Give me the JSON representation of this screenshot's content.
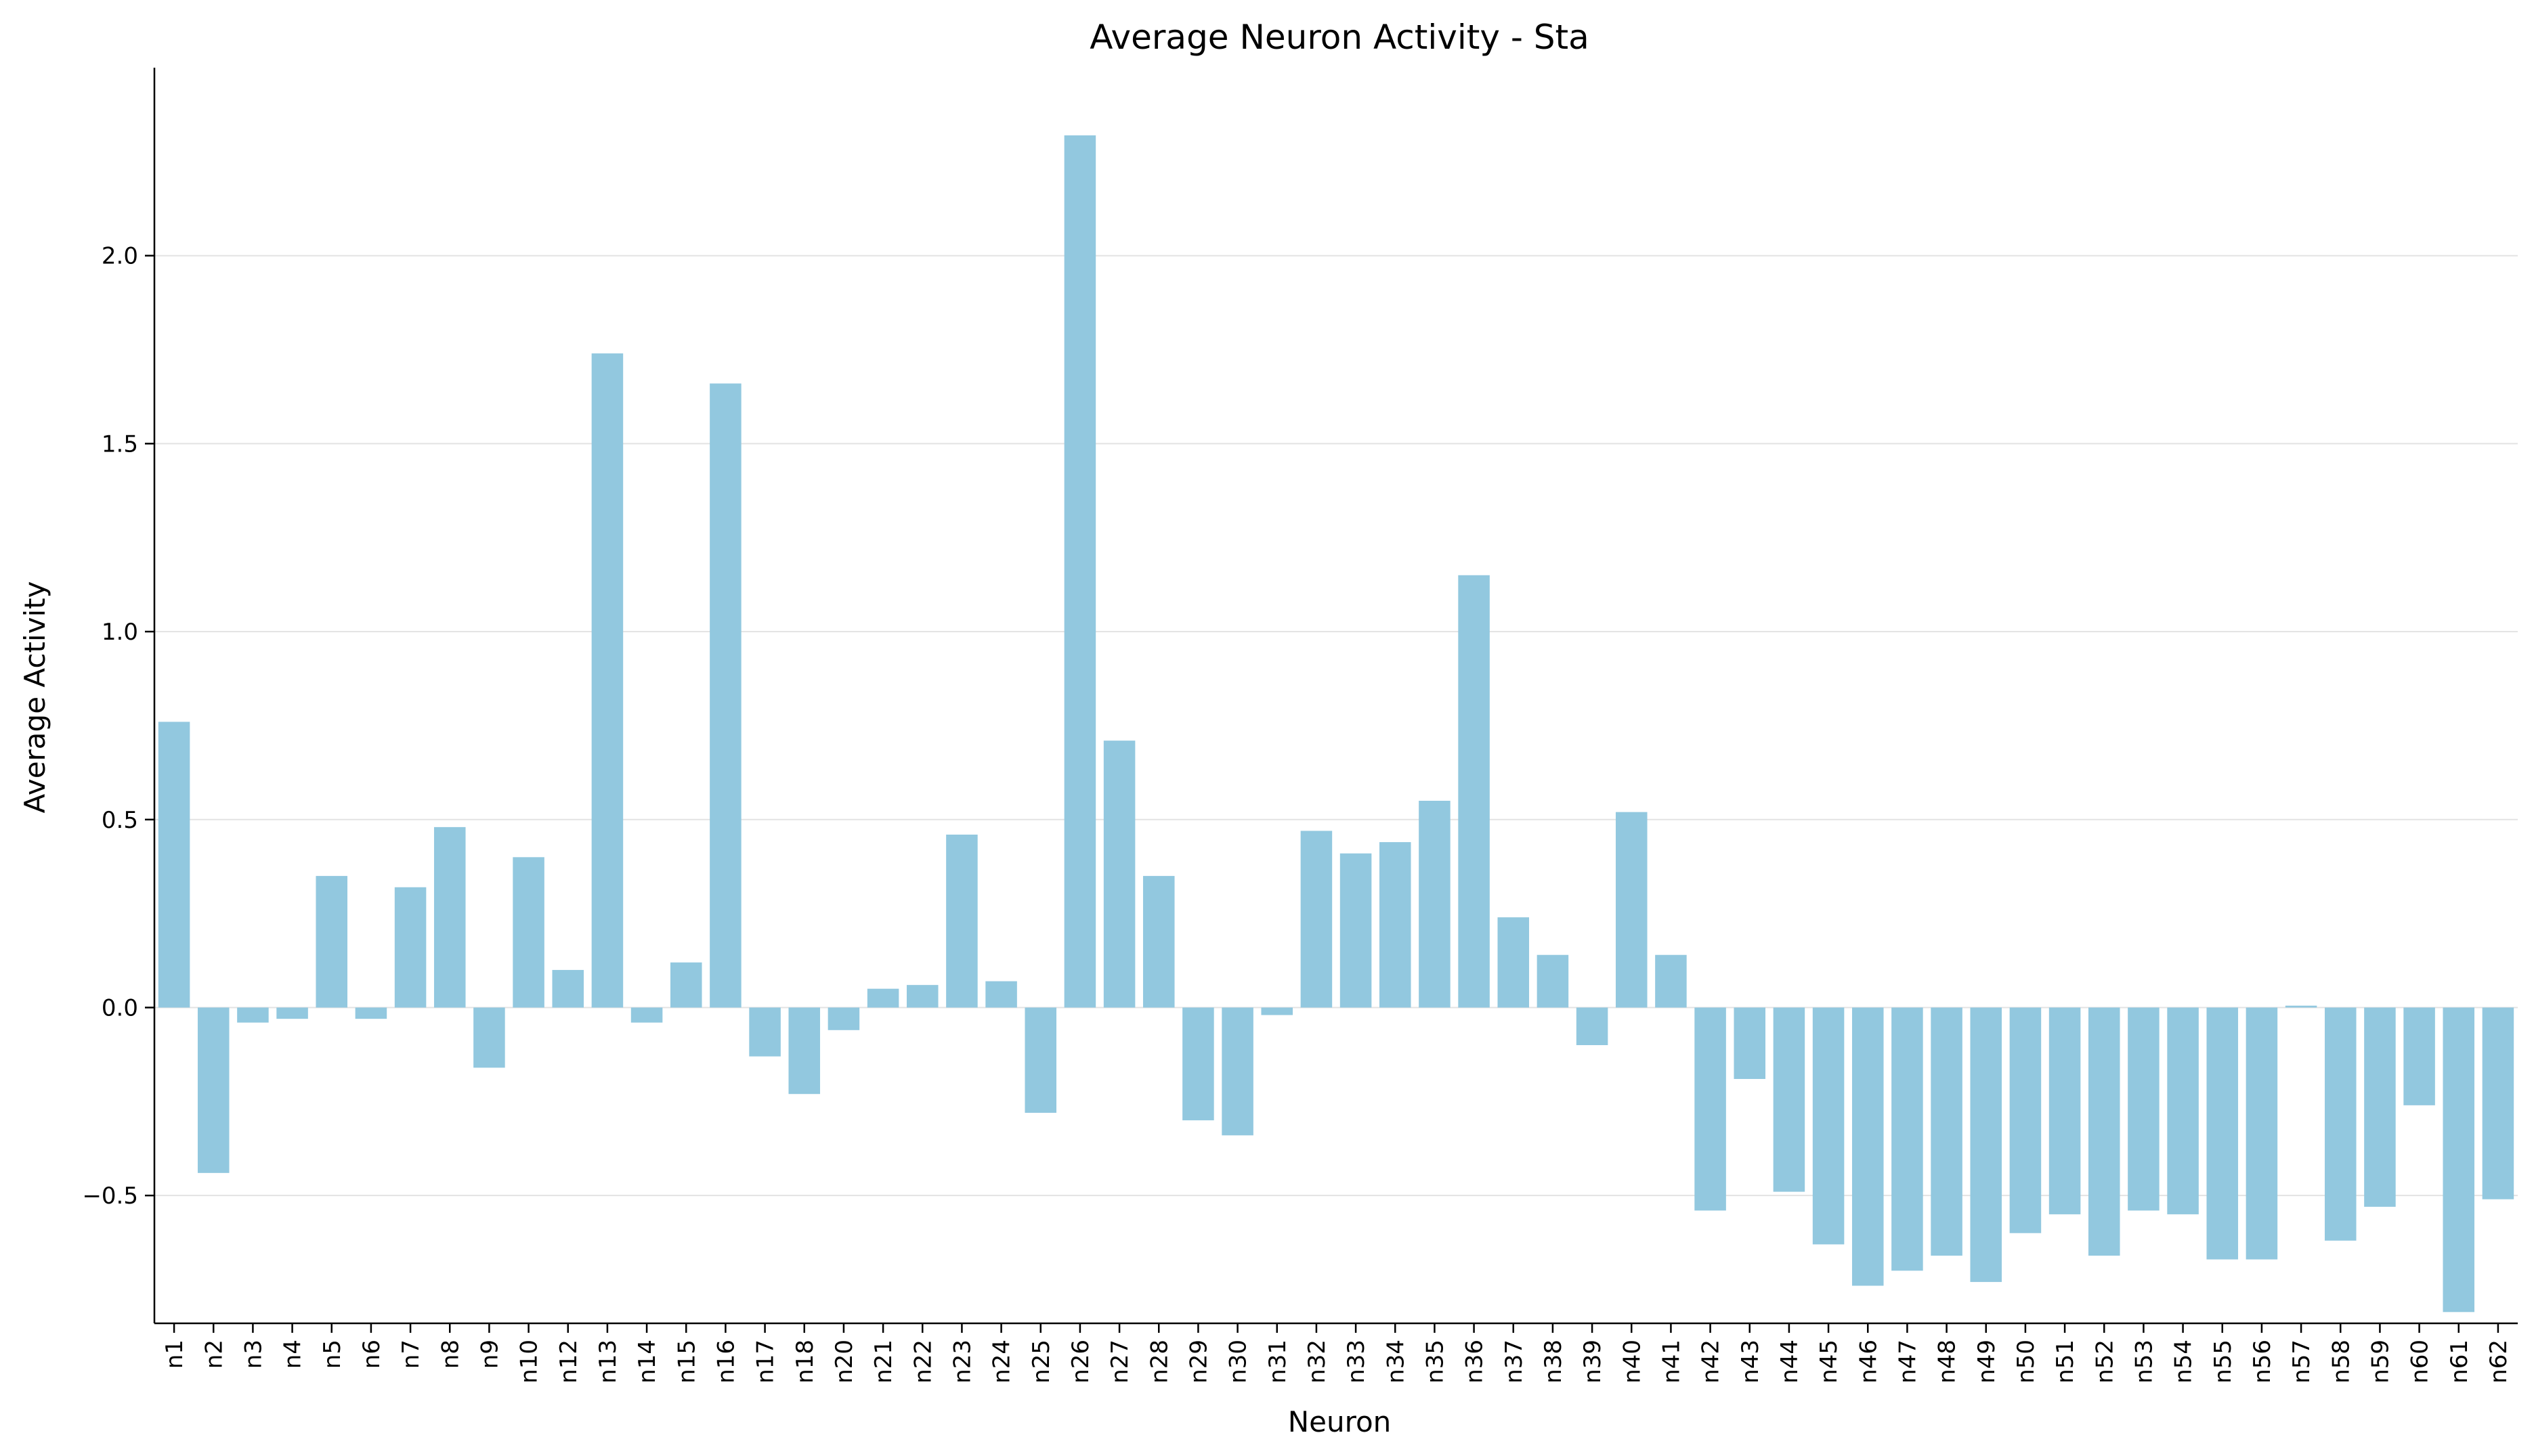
{
  "chart_data": {
    "type": "bar",
    "title": "Average Neuron Activity - Sta",
    "xlabel": "Neuron",
    "ylabel": "Average Activity",
    "ylim": [
      -0.84,
      2.5
    ],
    "yticks": [
      -0.5,
      0.0,
      0.5,
      1.0,
      1.5,
      2.0
    ],
    "ytick_labels": [
      "−0.5",
      "0.0",
      "0.5",
      "1.0",
      "1.5",
      "2.0"
    ],
    "grid": "horizontal",
    "bar_color": "#92c8df",
    "categories": [
      "n1",
      "n2",
      "n3",
      "n4",
      "n5",
      "n6",
      "n7",
      "n8",
      "n9",
      "n10",
      "n12",
      "n13",
      "n14",
      "n15",
      "n16",
      "n17",
      "n18",
      "n20",
      "n21",
      "n22",
      "n23",
      "n24",
      "n25",
      "n26",
      "n27",
      "n28",
      "n29",
      "n30",
      "n31",
      "n32",
      "n33",
      "n34",
      "n35",
      "n36",
      "n37",
      "n38",
      "n39",
      "n40",
      "n41",
      "n42",
      "n43",
      "n44",
      "n45",
      "n46",
      "n47",
      "n48",
      "n49",
      "n50",
      "n51",
      "n52",
      "n53",
      "n54",
      "n55",
      "n56",
      "n57",
      "n58",
      "n59",
      "n60",
      "n61",
      "n62"
    ],
    "values": [
      0.76,
      -0.44,
      -0.04,
      -0.03,
      0.35,
      -0.03,
      0.32,
      0.48,
      -0.16,
      0.4,
      0.1,
      1.74,
      -0.04,
      0.12,
      1.66,
      -0.13,
      -0.23,
      -0.06,
      0.05,
      0.06,
      0.46,
      0.07,
      -0.28,
      2.32,
      0.71,
      0.35,
      -0.3,
      -0.34,
      -0.02,
      0.47,
      0.41,
      0.44,
      0.55,
      1.15,
      0.24,
      0.14,
      -0.1,
      0.52,
      0.14,
      -0.54,
      -0.19,
      -0.49,
      -0.63,
      -0.74,
      -0.7,
      -0.66,
      -0.73,
      -0.6,
      -0.55,
      -0.66,
      -0.54,
      -0.55,
      -0.67,
      -0.67,
      0.005,
      -0.62,
      -0.53,
      -0.26,
      -0.81,
      -0.51
    ]
  }
}
